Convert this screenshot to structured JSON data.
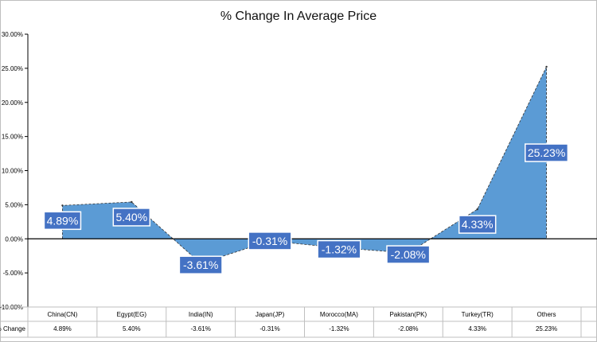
{
  "chart_data": {
    "type": "area",
    "title": "% Change In Average Price",
    "categories": [
      "China(CN)",
      "Egypt(EG)",
      "India(IN)",
      "Japan(JP)",
      "Morocco(MA)",
      "Pakistan(PK)",
      "Turkey(TR)",
      "Others"
    ],
    "series": [
      {
        "values": [
          4.89,
          5.4,
          -3.61,
          -0.31,
          -1.32,
          -2.08,
          4.33,
          25.23
        ]
      }
    ],
    "data_labels": [
      "4.89%",
      "5.40%",
      "-3.61%",
      "-0.31%",
      "-1.32%",
      "-2.08%",
      "4.33%",
      "25.23%"
    ],
    "y_ticks": [
      "30.00%",
      "25.00%",
      "20.00%",
      "15.00%",
      "10.00%",
      "5.00%",
      "0.00%",
      "-5.00%",
      "-10.00%"
    ],
    "y_tick_values": [
      30,
      25,
      20,
      15,
      10,
      5,
      0,
      -5,
      -10
    ],
    "ylim": [
      -10,
      30
    ],
    "grid": false,
    "legend": "none",
    "table": {
      "row_label": "% Change",
      "values": [
        "4.89%",
        "5.40%",
        "-3.61%",
        "-0.31%",
        "-1.32%",
        "-2.08%",
        "4.33%",
        "25.23%"
      ]
    },
    "colors": {
      "area": "#5b9bd5",
      "label_box": "#4472c4",
      "axis": "#000000",
      "border": "#bfbfbf"
    }
  }
}
